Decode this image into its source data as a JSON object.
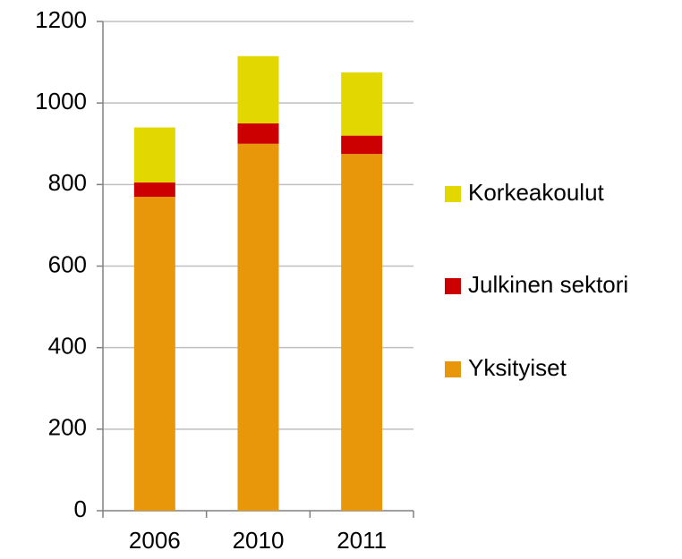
{
  "chart_data": {
    "type": "stacked_bar",
    "categories": [
      "2006",
      "2010",
      "2011"
    ],
    "series": [
      {
        "name": "Yksityiset",
        "color": "#e8960a",
        "values": [
          770,
          900,
          875
        ]
      },
      {
        "name": "Julkinen sektori",
        "color": "#cc0000",
        "values": [
          35,
          50,
          45
        ]
      },
      {
        "name": "Korkeakoulut",
        "color": "#e2d800",
        "values": [
          135,
          165,
          155
        ]
      }
    ],
    "ylim": [
      0,
      1200
    ],
    "yticks": [
      0,
      200,
      400,
      600,
      800,
      1000,
      1200
    ],
    "grid": true,
    "legend": "right"
  }
}
